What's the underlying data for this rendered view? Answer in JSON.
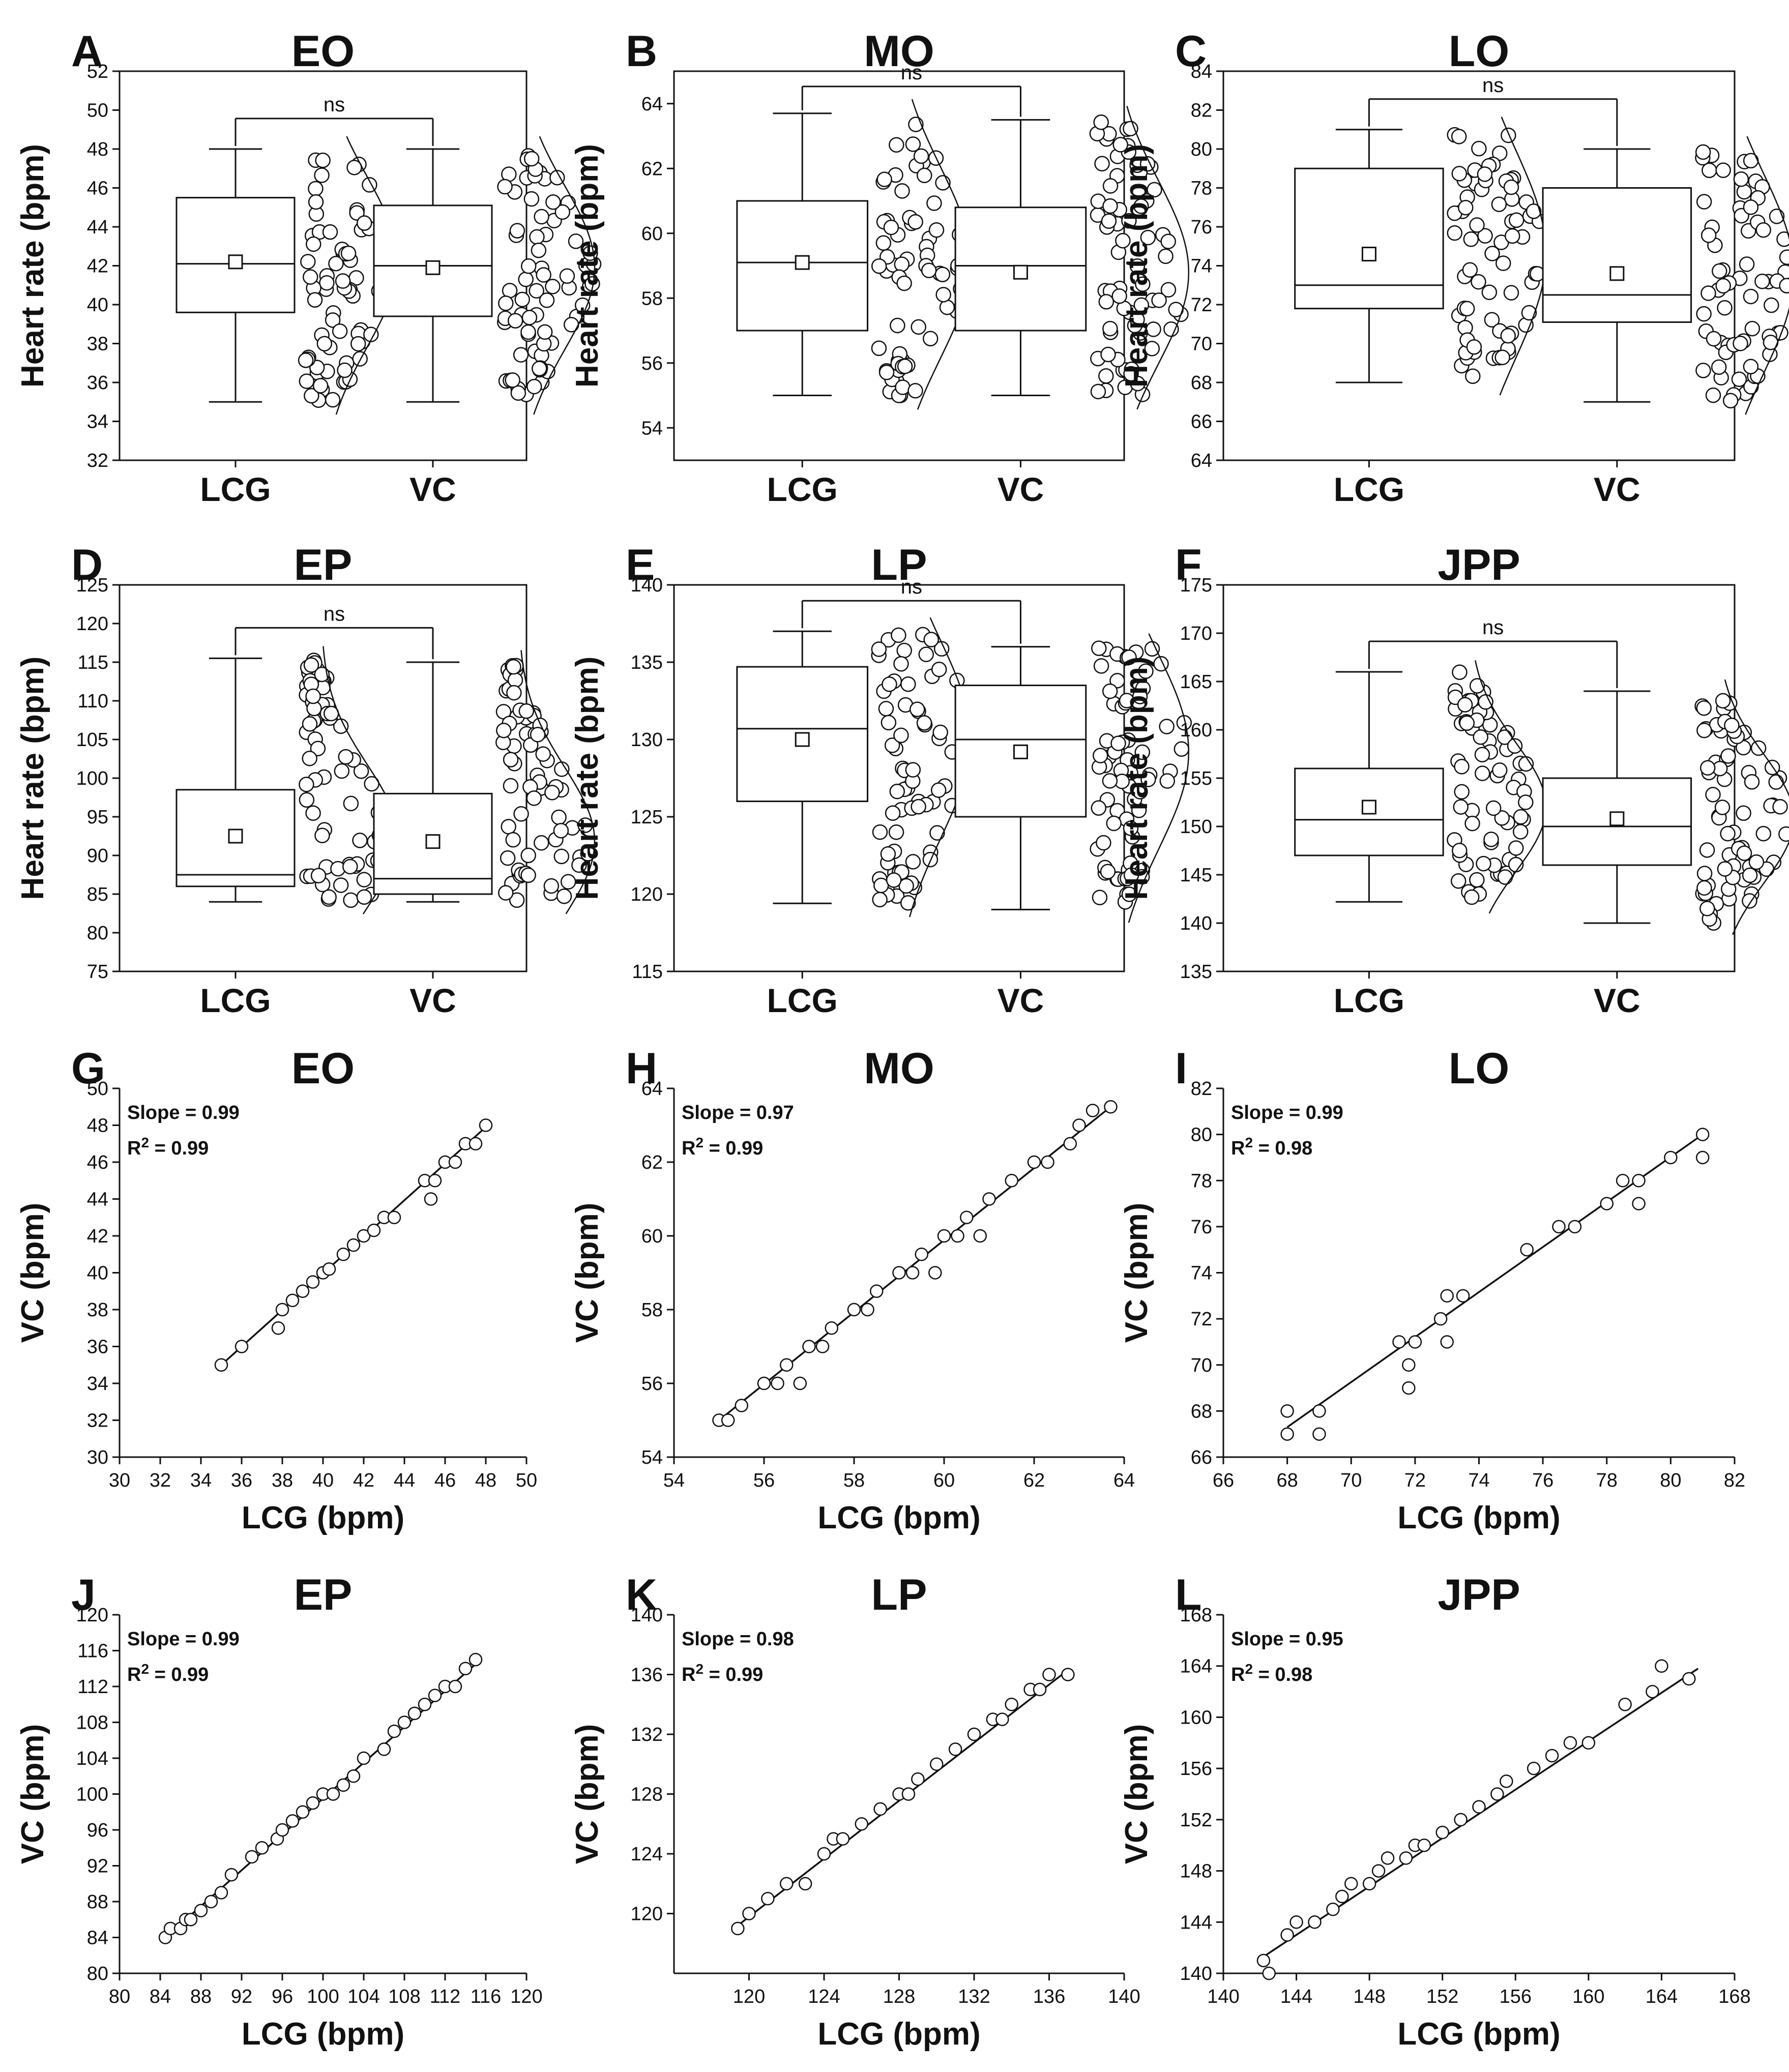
{
  "figure": {
    "colors": {
      "ink": "#111111",
      "marker_fill": "#ffffff",
      "box_fill": "#ffffff"
    }
  },
  "chart_data": [
    {
      "panel": "A",
      "title": "EO",
      "type": "box",
      "ylabel": "Heart rate (bpm)",
      "categories": [
        "LCG",
        "VC"
      ],
      "ylim": [
        32,
        52
      ],
      "yticks": [
        32,
        34,
        36,
        38,
        40,
        42,
        44,
        46,
        48,
        50,
        52
      ],
      "significance": "ns",
      "groups": [
        {
          "name": "LCG",
          "min": 35,
          "q1": 39.6,
          "median": 42.1,
          "mean": 42.2,
          "q3": 45.5,
          "max": 48
        },
        {
          "name": "VC",
          "min": 35,
          "q1": 39.4,
          "median": 42,
          "mean": 41.9,
          "q3": 45.1,
          "max": 48
        }
      ]
    },
    {
      "panel": "B",
      "title": "MO",
      "type": "box",
      "ylabel": "Heart rate (bpm)",
      "categories": [
        "LCG",
        "VC"
      ],
      "ylim": [
        53,
        65
      ],
      "yticks": [
        54,
        56,
        58,
        60,
        62,
        64
      ],
      "significance": "ns",
      "groups": [
        {
          "name": "LCG",
          "min": 55,
          "q1": 57,
          "median": 59.1,
          "mean": 59.1,
          "q3": 61,
          "max": 63.7
        },
        {
          "name": "VC",
          "min": 55,
          "q1": 57,
          "median": 59,
          "mean": 58.8,
          "q3": 60.8,
          "max": 63.5
        }
      ]
    },
    {
      "panel": "C",
      "title": "LO",
      "type": "box",
      "ylabel": "Heart rate (bpm)",
      "categories": [
        "LCG",
        "VC"
      ],
      "ylim": [
        64,
        84
      ],
      "yticks": [
        64,
        66,
        68,
        70,
        72,
        74,
        76,
        78,
        80,
        82,
        84
      ],
      "significance": "ns",
      "groups": [
        {
          "name": "LCG",
          "min": 68,
          "q1": 71.8,
          "median": 73,
          "mean": 74.6,
          "q3": 79,
          "max": 81
        },
        {
          "name": "VC",
          "min": 67,
          "q1": 71.1,
          "median": 72.5,
          "mean": 73.6,
          "q3": 78,
          "max": 80
        }
      ]
    },
    {
      "panel": "D",
      "title": "EP",
      "type": "box",
      "ylabel": "Heart rate (bpm)",
      "categories": [
        "LCG",
        "VC"
      ],
      "ylim": [
        75,
        125
      ],
      "yticks": [
        75,
        80,
        85,
        90,
        95,
        100,
        105,
        110,
        115,
        120,
        125
      ],
      "significance": "ns",
      "groups": [
        {
          "name": "LCG",
          "min": 84,
          "q1": 86,
          "median": 87.5,
          "mean": 92.5,
          "q3": 98.5,
          "max": 115.5
        },
        {
          "name": "VC",
          "min": 84,
          "q1": 85,
          "median": 87,
          "mean": 91.8,
          "q3": 98,
          "max": 115
        }
      ]
    },
    {
      "panel": "E",
      "title": "LP",
      "type": "box",
      "ylabel": "Heart rate (bpm)",
      "categories": [
        "LCG",
        "VC"
      ],
      "ylim": [
        115,
        140
      ],
      "yticks": [
        115,
        120,
        125,
        130,
        135,
        140
      ],
      "significance": "ns",
      "groups": [
        {
          "name": "LCG",
          "min": 119.4,
          "q1": 126,
          "median": 130.7,
          "mean": 130,
          "q3": 134.7,
          "max": 137
        },
        {
          "name": "VC",
          "min": 119,
          "q1": 125,
          "median": 130,
          "mean": 129.2,
          "q3": 133.5,
          "max": 136
        }
      ]
    },
    {
      "panel": "F",
      "title": "JPP",
      "type": "box",
      "ylabel": "Heart rate (bpm)",
      "categories": [
        "LCG",
        "VC"
      ],
      "ylim": [
        135,
        175
      ],
      "yticks": [
        135,
        140,
        145,
        150,
        155,
        160,
        165,
        170,
        175
      ],
      "significance": "ns",
      "groups": [
        {
          "name": "LCG",
          "min": 142.2,
          "q1": 147,
          "median": 150.7,
          "mean": 152,
          "q3": 156,
          "max": 166
        },
        {
          "name": "VC",
          "min": 140,
          "q1": 146,
          "median": 150,
          "mean": 150.8,
          "q3": 155,
          "max": 164
        }
      ]
    },
    {
      "panel": "G",
      "title": "EO",
      "type": "scatter",
      "xlabel": "LCG (bpm)",
      "ylabel": "VC (bpm)",
      "xlim": [
        30,
        50
      ],
      "xticks": [
        30,
        32,
        34,
        36,
        38,
        40,
        42,
        44,
        46,
        48,
        50
      ],
      "ylim": [
        30,
        50
      ],
      "yticks": [
        30,
        32,
        34,
        36,
        38,
        40,
        42,
        44,
        46,
        48,
        50
      ],
      "slope_text": "Slope = 0.99",
      "r2_prefix": "R",
      "r2_sup": "2",
      "r2_suffix": " = 0.99",
      "fit": {
        "x0": 35,
        "y0": 35,
        "x1": 48,
        "y1": 47.9
      },
      "x": [
        35,
        36,
        37.8,
        38,
        38.5,
        39,
        39.5,
        40,
        40.3,
        41,
        41.5,
        42,
        42.5,
        43,
        43.5,
        45,
        45.3,
        45.5,
        46,
        46.5,
        47,
        47.5,
        48
      ],
      "y": [
        35,
        36,
        37,
        38,
        38.5,
        39,
        39.5,
        40,
        40.2,
        41,
        41.5,
        42,
        42.3,
        43,
        43,
        45,
        44,
        45,
        46,
        46,
        47,
        47,
        48
      ]
    },
    {
      "panel": "H",
      "title": "MO",
      "type": "scatter",
      "xlabel": "LCG (bpm)",
      "ylabel": "VC (bpm)",
      "xlim": [
        54,
        64
      ],
      "xticks": [
        54,
        56,
        58,
        60,
        62,
        64
      ],
      "ylim": [
        54,
        64
      ],
      "yticks": [
        54,
        56,
        58,
        60,
        62,
        64
      ],
      "slope_text": "Slope = 0.97",
      "r2_prefix": "R",
      "r2_sup": "2",
      "r2_suffix": " = 0.99",
      "fit": {
        "x0": 55,
        "y0": 55,
        "x1": 63.7,
        "y1": 63.5
      },
      "x": [
        55,
        55.2,
        55.5,
        56,
        56.3,
        56.5,
        56.8,
        57,
        57.3,
        57.5,
        58,
        58.3,
        58.5,
        59,
        59.3,
        59.5,
        59.8,
        60,
        60.3,
        60.5,
        60.8,
        61,
        61.5,
        62,
        62.3,
        62.8,
        63,
        63.3,
        63.7
      ],
      "y": [
        55,
        55,
        55.4,
        56,
        56,
        56.5,
        56,
        57,
        57,
        57.5,
        58,
        58,
        58.5,
        59,
        59,
        59.5,
        59,
        60,
        60,
        60.5,
        60,
        61,
        61.5,
        62,
        62,
        62.5,
        63,
        63.4,
        63.5
      ]
    },
    {
      "panel": "I",
      "title": "LO",
      "type": "scatter",
      "xlabel": "LCG (bpm)",
      "ylabel": "VC (bpm)",
      "xlim": [
        66,
        82
      ],
      "xticks": [
        66,
        68,
        70,
        72,
        74,
        76,
        78,
        80,
        82
      ],
      "ylim": [
        66,
        82
      ],
      "yticks": [
        66,
        68,
        70,
        72,
        74,
        76,
        78,
        80,
        82
      ],
      "slope_text": "Slope = 0.99",
      "r2_prefix": "R",
      "r2_sup": "2",
      "r2_suffix": " = 0.98",
      "fit": {
        "x0": 68,
        "y0": 67.3,
        "x1": 81,
        "y1": 80
      },
      "x": [
        68,
        68,
        69,
        69,
        71.5,
        71.8,
        71.8,
        72,
        72.8,
        73,
        73,
        73.5,
        75.5,
        76.5,
        77,
        78,
        78.5,
        79,
        79,
        80,
        81,
        81
      ],
      "y": [
        67,
        68,
        67,
        68,
        71,
        70,
        69,
        71,
        72,
        71,
        73,
        73,
        75,
        76,
        76,
        77,
        78,
        77,
        78,
        79,
        80,
        79
      ]
    },
    {
      "panel": "J",
      "title": "EP",
      "type": "scatter",
      "xlabel": "LCG (bpm)",
      "ylabel": "VC (bpm)",
      "xlim": [
        80,
        120
      ],
      "xticks": [
        80,
        84,
        88,
        92,
        96,
        100,
        104,
        108,
        112,
        116,
        120
      ],
      "ylim": [
        80,
        120
      ],
      "yticks": [
        80,
        84,
        88,
        92,
        96,
        100,
        104,
        108,
        112,
        116,
        120
      ],
      "slope_text": "Slope = 0.99",
      "r2_prefix": "R",
      "r2_sup": "2",
      "r2_suffix": " = 0.99",
      "fit": {
        "x0": 84.5,
        "y0": 84,
        "x1": 115.5,
        "y1": 115
      },
      "x": [
        84.5,
        85,
        86,
        86.5,
        87,
        88,
        89,
        90,
        91,
        93,
        94,
        95.5,
        96,
        97,
        98,
        99,
        100,
        101,
        102,
        103,
        104,
        106,
        107,
        108,
        109,
        110,
        111,
        112,
        113,
        114,
        115
      ],
      "y": [
        84,
        85,
        85,
        86,
        86,
        87,
        88,
        89,
        91,
        93,
        94,
        95,
        96,
        97,
        98,
        99,
        100,
        100,
        101,
        102,
        104,
        105,
        107,
        108,
        109,
        110,
        111,
        112,
        112,
        114,
        115
      ]
    },
    {
      "panel": "K",
      "title": "LP",
      "type": "scatter",
      "xlabel": "LCG (bpm)",
      "ylabel": "VC (bpm)",
      "xlim": [
        116,
        140
      ],
      "xticks": [
        120,
        124,
        128,
        132,
        136,
        140
      ],
      "ylim": [
        116,
        140
      ],
      "yticks": [
        120,
        124,
        128,
        132,
        136,
        140
      ],
      "slope_text": "Slope = 0.98",
      "r2_prefix": "R",
      "r2_sup": "2",
      "r2_suffix": " = 0.99",
      "fit": {
        "x0": 119.4,
        "y0": 119.2,
        "x1": 137,
        "y1": 136.3
      },
      "x": [
        119.4,
        120,
        121,
        122,
        123,
        124,
        124.5,
        125,
        126,
        127,
        128,
        128.5,
        129,
        130,
        131,
        132,
        133,
        133.5,
        134,
        135,
        135.5,
        136,
        137
      ],
      "y": [
        119,
        120,
        121,
        122,
        122,
        124,
        125,
        125,
        126,
        127,
        128,
        128,
        129,
        130,
        131,
        132,
        133,
        133,
        134,
        135,
        135,
        136,
        136
      ]
    },
    {
      "panel": "L",
      "title": "JPP",
      "type": "scatter",
      "xlabel": "LCG (bpm)",
      "ylabel": "VC (bpm)",
      "xlim": [
        140,
        168
      ],
      "xticks": [
        140,
        144,
        148,
        152,
        156,
        160,
        164,
        168
      ],
      "ylim": [
        140,
        168
      ],
      "yticks": [
        140,
        144,
        148,
        152,
        156,
        160,
        164,
        168
      ],
      "slope_text": "Slope = 0.95",
      "r2_prefix": "R",
      "r2_sup": "2",
      "r2_suffix": " = 0.98",
      "fit": {
        "x0": 142.2,
        "y0": 141.3,
        "x1": 166,
        "y1": 163.8
      },
      "x": [
        142.2,
        142.5,
        143.5,
        144,
        145,
        146,
        146.5,
        147,
        148,
        148.5,
        149,
        150,
        150.5,
        151,
        152,
        153,
        154,
        155,
        155.5,
        157,
        158,
        159,
        160,
        162,
        163.5,
        164,
        165.5
      ],
      "y": [
        141,
        140,
        143,
        144,
        144,
        145,
        146,
        147,
        147,
        148,
        149,
        149,
        150,
        150,
        151,
        152,
        153,
        154,
        155,
        156,
        157,
        158,
        158,
        161,
        162,
        164,
        163
      ]
    }
  ]
}
